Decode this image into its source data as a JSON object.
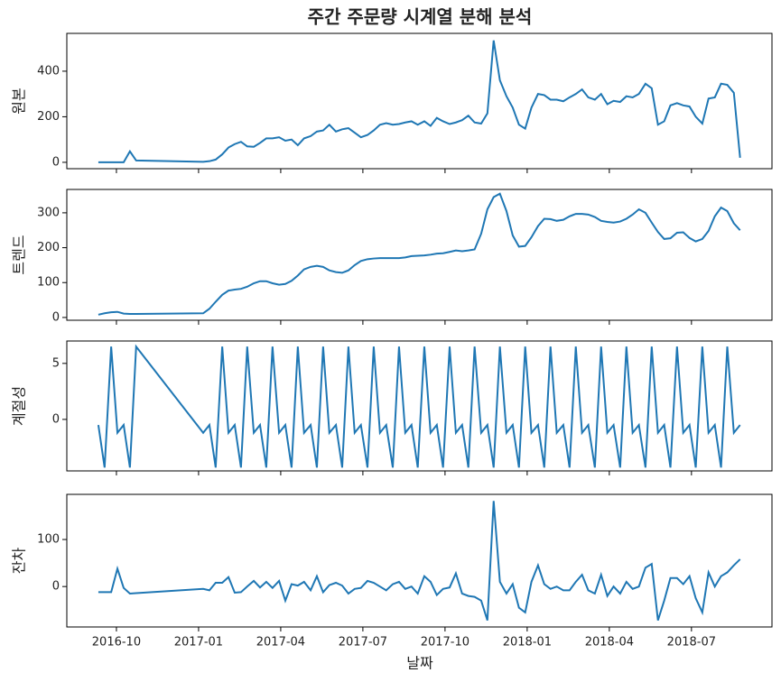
{
  "chart_data": {
    "type": "line",
    "title": "주간 주문량 시계열 분해 분석",
    "xlabel": "날짜",
    "color": "#1f77b4",
    "x": [
      2016.695,
      2016.714,
      2016.734,
      2016.753,
      2016.772,
      2016.791,
      2016.81,
      2017.014,
      2017.033,
      2017.052,
      2017.072,
      2017.091,
      2017.11,
      2017.129,
      2017.148,
      2017.168,
      2017.187,
      2017.206,
      2017.225,
      2017.245,
      2017.264,
      2017.283,
      2017.302,
      2017.321,
      2017.341,
      2017.36,
      2017.379,
      2017.398,
      2017.418,
      2017.437,
      2017.456,
      2017.475,
      2017.494,
      2017.514,
      2017.533,
      2017.552,
      2017.571,
      2017.591,
      2017.61,
      2017.629,
      2017.648,
      2017.667,
      2017.687,
      2017.706,
      2017.725,
      2017.744,
      2017.764,
      2017.783,
      2017.802,
      2017.821,
      2017.84,
      2017.86,
      2017.879,
      2017.898,
      2017.917,
      2017.937,
      2017.956,
      2017.975,
      2017.994,
      2018.013,
      2018.033,
      2018.052,
      2018.071,
      2018.09,
      2018.11,
      2018.129,
      2018.148,
      2018.167,
      2018.186,
      2018.206,
      2018.225,
      2018.244,
      2018.263,
      2018.283,
      2018.302,
      2018.321,
      2018.34,
      2018.36,
      2018.379,
      2018.398,
      2018.417,
      2018.436,
      2018.456,
      2018.475,
      2018.494,
      2018.513,
      2018.533,
      2018.552,
      2018.571,
      2018.59,
      2018.609,
      2018.629,
      2018.648
    ],
    "xlim": [
      2016.599,
      2018.745
    ],
    "xticks": [
      {
        "value": 2016.75,
        "label": "2016-10"
      },
      {
        "value": 2017.0,
        "label": "2017-01"
      },
      {
        "value": 2017.25,
        "label": "2017-04"
      },
      {
        "value": 2017.5,
        "label": "2017-07"
      },
      {
        "value": 2017.75,
        "label": "2017-10"
      },
      {
        "value": 2018.0,
        "label": "2018-01"
      },
      {
        "value": 2018.25,
        "label": "2018-04"
      },
      {
        "value": 2018.5,
        "label": "2018-07"
      }
    ],
    "panels": [
      {
        "ylabel": "원본",
        "ylim": [
          -28,
          566
        ],
        "yticks": [
          0,
          200,
          400
        ],
        "values": [
          0,
          0,
          0,
          0,
          0,
          48,
          8,
          2,
          5,
          12,
          35,
          65,
          80,
          90,
          70,
          68,
          85,
          105,
          105,
          110,
          95,
          100,
          75,
          105,
          115,
          135,
          140,
          165,
          135,
          145,
          150,
          130,
          110,
          120,
          140,
          165,
          172,
          165,
          168,
          175,
          180,
          165,
          180,
          160,
          195,
          180,
          168,
          175,
          185,
          205,
          175,
          170,
          215,
          535,
          360,
          290,
          240,
          165,
          148,
          240,
          300,
          295,
          275,
          275,
          268,
          285,
          300,
          320,
          285,
          275,
          300,
          255,
          270,
          265,
          290,
          285,
          300,
          345,
          325,
          165,
          180,
          250,
          260,
          250,
          245,
          200,
          170,
          280,
          285,
          345,
          340,
          305,
          20
        ]
      },
      {
        "ylabel": "트렌드",
        "ylim": [
          -8,
          367
        ],
        "yticks": [
          0,
          100,
          200,
          300
        ],
        "values": [
          8,
          12,
          15,
          16,
          11,
          10,
          10,
          12,
          25,
          45,
          65,
          77,
          80,
          82,
          88,
          98,
          104,
          104,
          98,
          94,
          96,
          105,
          120,
          138,
          145,
          148,
          145,
          135,
          130,
          128,
          135,
          150,
          162,
          167,
          169,
          170,
          170,
          170,
          170,
          172,
          176,
          177,
          178,
          180,
          183,
          184,
          188,
          192,
          190,
          192,
          195,
          240,
          310,
          345,
          355,
          305,
          235,
          203,
          205,
          230,
          262,
          283,
          282,
          277,
          280,
          290,
          297,
          297,
          295,
          288,
          277,
          274,
          272,
          275,
          283,
          295,
          310,
          300,
          272,
          245,
          225,
          227,
          243,
          244,
          228,
          218,
          225,
          248,
          290,
          315,
          305,
          270,
          250
        ]
      },
      {
        "ylabel": "계절성",
        "ylim": [
          -4.6,
          7.0
        ],
        "yticks": [
          0,
          5
        ],
        "values": [
          -0.5,
          -4.3,
          6.5,
          -1.2,
          -0.5,
          -4.3,
          6.5,
          -1.2,
          -0.5,
          -4.3,
          6.5,
          -1.2,
          -0.5,
          -4.3,
          6.5,
          -1.2,
          -0.5,
          -4.3,
          6.5,
          -1.2,
          -0.5,
          -4.3,
          6.5,
          -1.2,
          -0.5,
          -4.3,
          6.5,
          -1.2,
          -0.5,
          -4.3,
          6.5,
          -1.2,
          -0.5,
          -4.3,
          6.5,
          -1.2,
          -0.5,
          -4.3,
          6.5,
          -1.2,
          -0.5,
          -4.3,
          6.5,
          -1.2,
          -0.5,
          -4.3,
          6.5,
          -1.2,
          -0.5,
          -4.3,
          6.5,
          -1.2,
          -0.5,
          -4.3,
          6.5,
          -1.2,
          -0.5,
          -4.3,
          6.5,
          -1.2,
          -0.5,
          -4.3,
          6.5,
          -1.2,
          -0.5,
          -4.3,
          6.5,
          -1.2,
          -0.5,
          -4.3,
          6.5,
          -1.2,
          -0.5,
          -4.3,
          6.5,
          -1.2,
          -0.5,
          -4.3,
          6.5,
          -1.2,
          -0.5,
          -4.3,
          6.5,
          -1.2,
          -0.5,
          -4.3,
          6.5,
          -1.2,
          -0.5,
          -4.3,
          6.5,
          -1.2,
          -0.5
        ]
      },
      {
        "ylabel": "잔차",
        "ylim": [
          -86,
          196
        ],
        "yticks": [
          0,
          100
        ],
        "values": [
          -12,
          -12,
          -12,
          38,
          -3,
          -15,
          -14,
          -5,
          -8,
          8,
          8,
          20,
          -13,
          -12,
          0,
          12,
          -2,
          10,
          -3,
          12,
          -30,
          5,
          2,
          10,
          -8,
          22,
          -12,
          3,
          8,
          2,
          -15,
          -5,
          -3,
          12,
          8,
          0,
          -8,
          5,
          10,
          -5,
          0,
          -15,
          22,
          10,
          -18,
          -5,
          -2,
          28,
          -15,
          -20,
          -22,
          -30,
          -72,
          182,
          10,
          -15,
          5,
          -45,
          -55,
          10,
          45,
          5,
          -5,
          0,
          -8,
          -8,
          10,
          25,
          -8,
          -15,
          25,
          -20,
          0,
          -15,
          10,
          -5,
          0,
          40,
          48,
          -72,
          -30,
          18,
          18,
          5,
          22,
          -25,
          -55,
          30,
          0,
          22,
          30,
          45,
          58
        ]
      }
    ]
  }
}
